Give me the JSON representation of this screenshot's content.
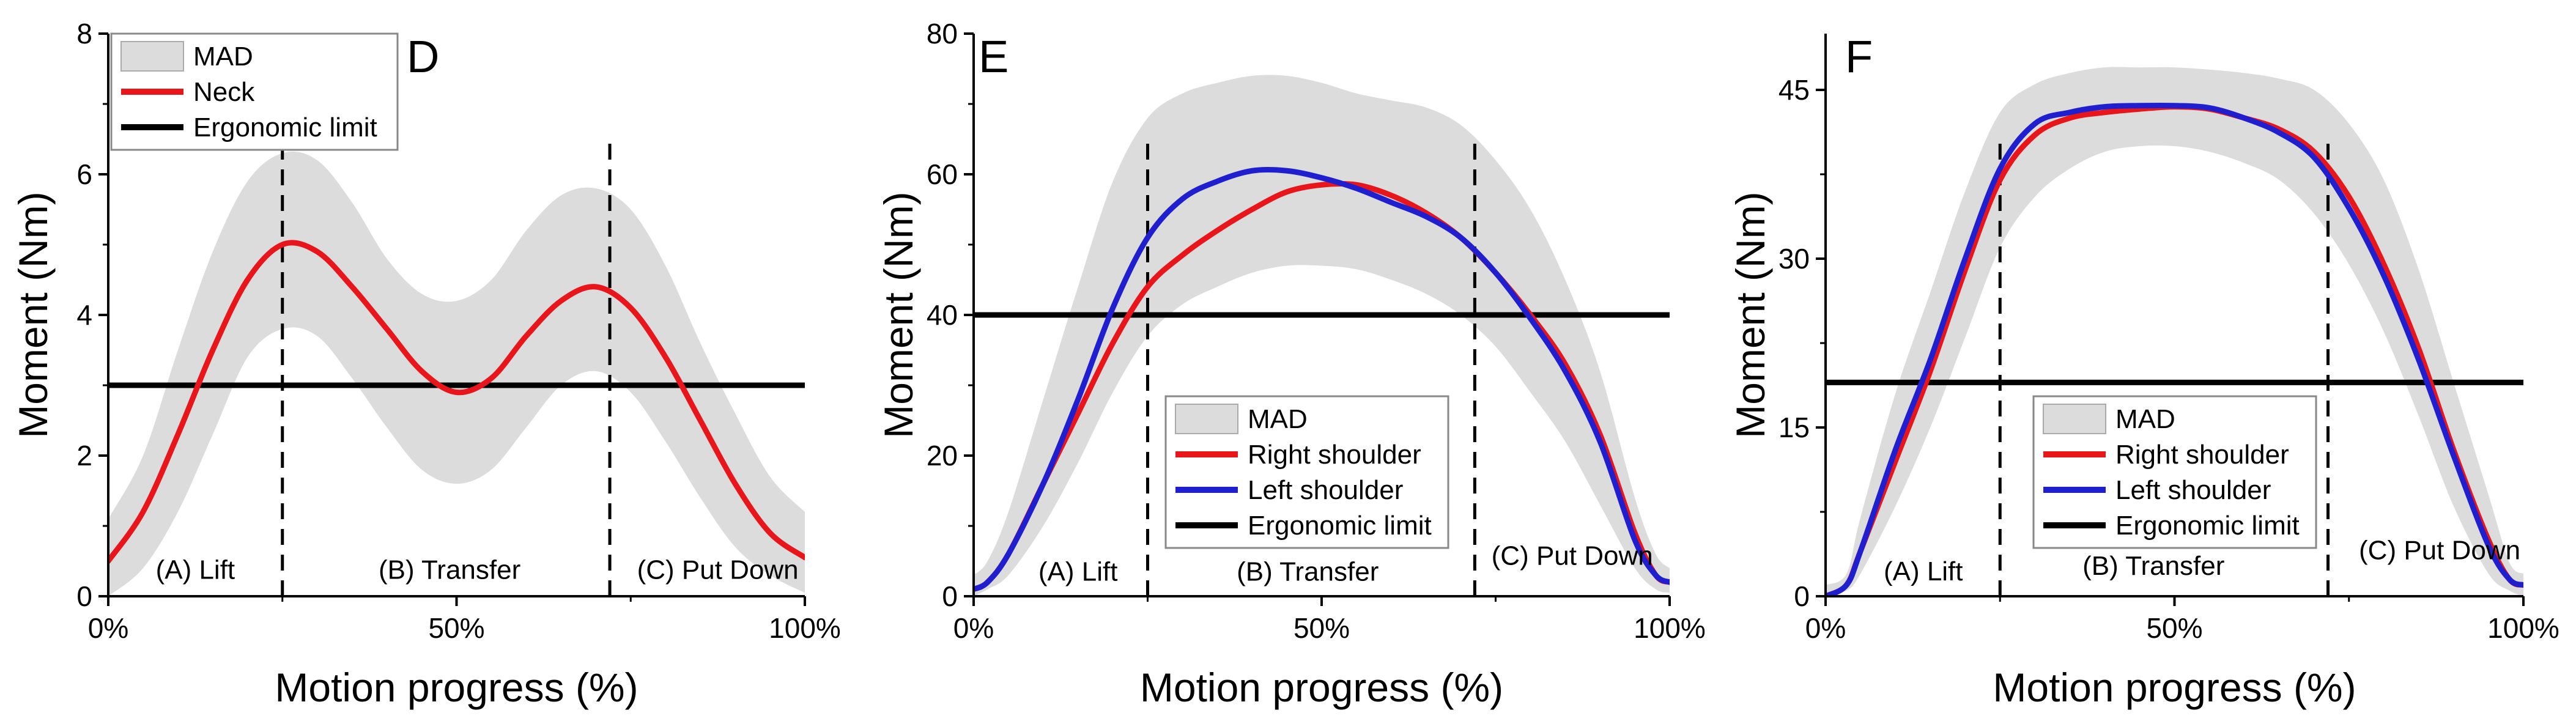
{
  "chart_data": [
    {
      "id": "D",
      "type": "line",
      "panel_label": "D",
      "xlabel": "Motion progress (%)",
      "ylabel": "Moment (Nm)",
      "xlim": [
        0,
        100
      ],
      "ylim": [
        0,
        8
      ],
      "xticks": [
        0,
        50,
        100
      ],
      "xtick_labels": [
        "0%",
        "50%",
        "100%"
      ],
      "yticks": [
        0,
        2,
        4,
        6,
        8
      ],
      "ytick_labels": [
        "0",
        "2",
        "4",
        "6",
        "8"
      ],
      "x": [
        0,
        5,
        10,
        15,
        20,
        25,
        30,
        35,
        40,
        45,
        50,
        55,
        60,
        65,
        70,
        75,
        80,
        85,
        90,
        95,
        100
      ],
      "series": [
        {
          "name": "Neck",
          "color": "#e8161b",
          "values": [
            0.5,
            1.2,
            2.3,
            3.5,
            4.5,
            5.0,
            4.9,
            4.4,
            3.8,
            3.2,
            2.9,
            3.1,
            3.7,
            4.2,
            4.4,
            4.1,
            3.4,
            2.5,
            1.6,
            0.9,
            0.55
          ]
        }
      ],
      "bands": [
        {
          "name": "MAD",
          "color": "#dcdcdc",
          "lower": [
            0.0,
            0.4,
            1.2,
            2.3,
            3.4,
            3.8,
            3.7,
            3.1,
            2.4,
            1.8,
            1.6,
            1.8,
            2.4,
            3.0,
            3.2,
            2.9,
            2.2,
            1.4,
            0.7,
            0.3,
            0.05
          ],
          "upper": [
            1.1,
            2.0,
            3.5,
            4.9,
            5.9,
            6.3,
            6.2,
            5.6,
            4.8,
            4.3,
            4.2,
            4.5,
            5.2,
            5.7,
            5.8,
            5.5,
            4.7,
            3.6,
            2.6,
            1.7,
            1.2
          ]
        }
      ],
      "reference_line": {
        "name": "Ergonomic limit",
        "value": 3,
        "color": "#000000"
      },
      "phase_boundaries": [
        25,
        72
      ],
      "phase_labels": [
        {
          "text": "(A) Lift",
          "x": 12.5,
          "y": 0.25
        },
        {
          "text": "(B) Transfer",
          "x": 49,
          "y": 0.25
        },
        {
          "text": "(C) Put Down",
          "x": 87.5,
          "y": 0.25
        }
      ],
      "legend": {
        "position": "top-left",
        "entries": [
          "MAD",
          "Neck",
          "Ergonomic limit"
        ]
      }
    },
    {
      "id": "E",
      "type": "line",
      "panel_label": "E",
      "xlabel": "Motion progress (%)",
      "ylabel": "Moment (Nm)",
      "xlim": [
        0,
        100
      ],
      "ylim": [
        0,
        80
      ],
      "xticks": [
        0,
        50,
        100
      ],
      "xtick_labels": [
        "0%",
        "50%",
        "100%"
      ],
      "yticks": [
        0,
        20,
        40,
        60,
        80
      ],
      "ytick_labels": [
        "0",
        "20",
        "40",
        "60",
        "80"
      ],
      "x": [
        0,
        2,
        5,
        10,
        15,
        20,
        25,
        30,
        35,
        40,
        45,
        50,
        55,
        60,
        65,
        70,
        75,
        80,
        85,
        90,
        95,
        98,
        100
      ],
      "series": [
        {
          "name": "Right shoulder",
          "color": "#e8161b",
          "values": [
            1,
            2,
            6,
            16,
            26,
            36,
            44,
            48.5,
            52,
            55,
            57.5,
            58.5,
            58.5,
            57,
            54.5,
            51,
            46,
            40,
            33,
            23,
            9,
            3,
            2
          ]
        },
        {
          "name": "Left shoulder",
          "color": "#1f1fd0",
          "values": [
            1,
            2,
            6,
            16,
            28,
            41,
            51,
            56.5,
            59,
            60.5,
            60.5,
            59.5,
            58,
            56,
            54,
            51,
            46,
            39.5,
            32,
            22,
            8,
            3,
            2
          ]
        }
      ],
      "bands": [
        {
          "name": "MAD",
          "color": "#dcdcdc",
          "lower": [
            0,
            1,
            3,
            10,
            19,
            29,
            37,
            41.5,
            44,
            46,
            47,
            47,
            46.5,
            45,
            43,
            40,
            35.5,
            29,
            22,
            13,
            4,
            1,
            0.5
          ],
          "upper": [
            3,
            5,
            12,
            28,
            44,
            59,
            68,
            71.5,
            73,
            74,
            74,
            73,
            71.5,
            70.5,
            69.5,
            67,
            62,
            55,
            45,
            32,
            14,
            6,
            4
          ]
        }
      ],
      "reference_line": {
        "name": "Ergonomic limit",
        "value": 40,
        "color": "#000000"
      },
      "phase_boundaries": [
        25,
        72
      ],
      "phase_labels": [
        {
          "text": "(A) Lift",
          "x": 15,
          "y": 2.2
        },
        {
          "text": "(B) Transfer",
          "x": 48,
          "y": 2.2
        },
        {
          "text": "(C) Put Down",
          "x": 86,
          "y": 4.5
        }
      ],
      "legend": {
        "position": "lower-center",
        "entries": [
          "MAD",
          "Right shoulder",
          "Left shoulder",
          "Ergonomic limit"
        ]
      }
    },
    {
      "id": "F",
      "type": "line",
      "panel_label": "F",
      "xlabel": "Motion progress (%)",
      "ylabel": "Moment (Nm)",
      "xlim": [
        0,
        100
      ],
      "ylim": [
        0,
        50
      ],
      "xticks": [
        0,
        50,
        100
      ],
      "xtick_labels": [
        "0%",
        "50%",
        "100%"
      ],
      "yticks": [
        0,
        15,
        30,
        45
      ],
      "ytick_labels": [
        "0",
        "15",
        "30",
        "45"
      ],
      "x": [
        0,
        3,
        5,
        10,
        15,
        20,
        25,
        30,
        35,
        40,
        45,
        50,
        55,
        60,
        65,
        70,
        75,
        80,
        85,
        90,
        95,
        98,
        100
      ],
      "series": [
        {
          "name": "Right shoulder",
          "color": "#e8161b",
          "values": [
            0,
            1,
            4,
            12,
            20,
            29,
            37,
            41,
            42.5,
            43,
            43.3,
            43.5,
            43.3,
            42.5,
            41.5,
            39.5,
            35.5,
            29.5,
            22,
            13,
            5,
            1.5,
            1
          ]
        },
        {
          "name": "Left shoulder",
          "color": "#1f1fd0",
          "values": [
            0,
            1,
            4,
            13,
            21,
            30,
            38,
            42,
            43,
            43.5,
            43.6,
            43.6,
            43.4,
            42.5,
            41.2,
            39,
            34.5,
            28.5,
            21,
            12.5,
            4.5,
            1.5,
            1
          ]
        }
      ],
      "bands": [
        {
          "name": "MAD",
          "color": "#dcdcdc",
          "lower": [
            0,
            0.5,
            2,
            8,
            15,
            23,
            31,
            35.5,
            38,
            39.5,
            40,
            40,
            39.5,
            38.5,
            37,
            34,
            29.5,
            23.5,
            16,
            8,
            2,
            0.5,
            0
          ],
          "upper": [
            1,
            2,
            7,
            18,
            27,
            36,
            43,
            45.5,
            46.5,
            47,
            47,
            47,
            46.8,
            46.5,
            46,
            45,
            42,
            37,
            29,
            19,
            9,
            3,
            2
          ]
        }
      ],
      "reference_line": {
        "name": "Ergonomic limit",
        "value": 19,
        "color": "#000000"
      },
      "phase_boundaries": [
        25,
        72
      ],
      "phase_labels": [
        {
          "text": "(A) Lift",
          "x": 14,
          "y": 1.4
        },
        {
          "text": "(B) Transfer",
          "x": 47,
          "y": 1.9
        },
        {
          "text": "(C) Put Down",
          "x": 88,
          "y": 3.3
        }
      ],
      "legend": {
        "position": "lower-center",
        "entries": [
          "MAD",
          "Right shoulder",
          "Left shoulder",
          "Ergonomic limit"
        ]
      }
    }
  ]
}
